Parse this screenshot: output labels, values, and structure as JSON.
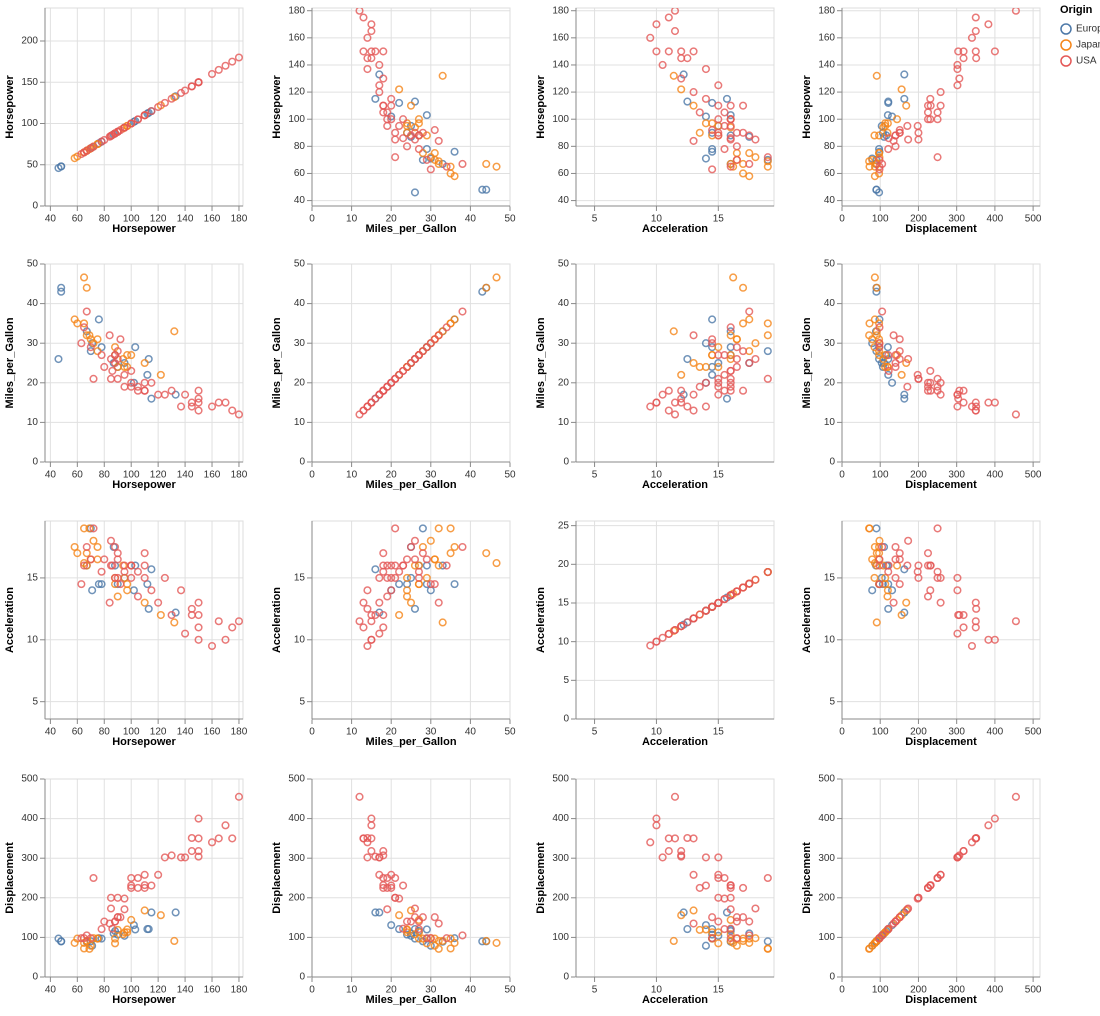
{
  "chart_data": {
    "type": "scatter-matrix",
    "fields": [
      "Horsepower",
      "Miles_per_Gallon",
      "Acceleration",
      "Displacement"
    ],
    "legend_title": "Origin",
    "legend": "top-right",
    "grid": true,
    "series": [
      {
        "name": "Europe",
        "color": "#4c78a8",
        "values": [
          [
            46,
            26,
            20.5,
            97
          ],
          [
            87,
            25,
            17.5,
            110
          ],
          [
            90,
            24,
            14.5,
            107
          ],
          [
            95,
            25,
            15,
            104
          ],
          [
            113,
            26,
            12.5,
            121
          ],
          [
            88,
            27,
            16,
            116
          ],
          [
            70,
            28,
            19,
            90
          ],
          [
            48,
            43,
            21,
            90
          ],
          [
            48,
            44,
            22,
            90
          ],
          [
            71,
            30,
            14,
            79
          ],
          [
            112,
            22,
            14.5,
            121
          ],
          [
            78,
            29,
            14.5,
            97
          ],
          [
            76,
            36,
            14.5,
            98
          ],
          [
            115,
            16,
            15.7,
            163
          ],
          [
            133,
            17,
            12.2,
            163
          ],
          [
            102,
            20,
            14,
            131
          ],
          [
            67,
            33,
            16,
            89
          ],
          [
            103,
            29,
            16,
            120
          ]
        ]
      },
      {
        "name": "Japan",
        "color": "#f58518",
        "values": [
          [
            95,
            24,
            15,
            113
          ],
          [
            88,
            27,
            14.5,
            97
          ],
          [
            97,
            27,
            14.5,
            113
          ],
          [
            65,
            35,
            19,
            72
          ],
          [
            69,
            32,
            19,
            71
          ],
          [
            60,
            35,
            17,
            97
          ],
          [
            70,
            31,
            16.5,
            79
          ],
          [
            67,
            32,
            16,
            91
          ],
          [
            75,
            28,
            17.5,
            97
          ],
          [
            90,
            24,
            13.5,
            119
          ],
          [
            94,
            26,
            16,
            108
          ],
          [
            100,
            27,
            16,
            144
          ],
          [
            122,
            22,
            12,
            156
          ],
          [
            132,
            33,
            11.4,
            91
          ],
          [
            58,
            36,
            17.5,
            86
          ],
          [
            65,
            46.6,
            16.2,
            86
          ],
          [
            67,
            44,
            17,
            91
          ],
          [
            75,
            31,
            16.5,
            97
          ],
          [
            110,
            25,
            13,
            168
          ],
          [
            97,
            24,
            14,
            120
          ],
          [
            88,
            29,
            15,
            85
          ],
          [
            72,
            30,
            18,
            98
          ]
        ]
      },
      {
        "name": "USA",
        "color": "#e45756",
        "values": [
          [
            130,
            18,
            12,
            307
          ],
          [
            165,
            15,
            11.5,
            350
          ],
          [
            150,
            18,
            11,
            318
          ],
          [
            150,
            16,
            12,
            304
          ],
          [
            140,
            17,
            10.5,
            302
          ],
          [
            170,
            15,
            10,
            383
          ],
          [
            160,
            14,
            9.5,
            340
          ],
          [
            150,
            15,
            10,
            400
          ],
          [
            175,
            13,
            11,
            350
          ],
          [
            180,
            12,
            11.5,
            455
          ],
          [
            145,
            14,
            12.5,
            351
          ],
          [
            137,
            14,
            14,
            302
          ],
          [
            150,
            13,
            13,
            350
          ],
          [
            100,
            19,
            15,
            250
          ],
          [
            105,
            18,
            15.5,
            250
          ],
          [
            110,
            18,
            16,
            232
          ],
          [
            100,
            20,
            16,
            225
          ],
          [
            90,
            21,
            15,
            200
          ],
          [
            95,
            22,
            15.5,
            198
          ],
          [
            85,
            21,
            16,
            200
          ],
          [
            88,
            25,
            17.5,
            140
          ],
          [
            86,
            23,
            16,
            122
          ],
          [
            90,
            26,
            16.5,
            151
          ],
          [
            72,
            21,
            19,
            250
          ],
          [
            110,
            20,
            15,
            258
          ],
          [
            90,
            28,
            17,
            151
          ],
          [
            88,
            27,
            15,
            140
          ],
          [
            105,
            19,
            13.5,
            225
          ],
          [
            84,
            32,
            13,
            135
          ],
          [
            63,
            30,
            14.5,
            98
          ],
          [
            70,
            29,
            16.5,
            98
          ],
          [
            80,
            24,
            16.5,
            140
          ],
          [
            78,
            27,
            15.5,
            121
          ],
          [
            100,
            23,
            16,
            231
          ],
          [
            115,
            20,
            14,
            231
          ],
          [
            120,
            17,
            13,
            258
          ],
          [
            110,
            18,
            17,
            225
          ],
          [
            125,
            17,
            15,
            302
          ],
          [
            95,
            19,
            16,
            171
          ],
          [
            92,
            31,
            14.5,
            151
          ],
          [
            85,
            26,
            18,
            173
          ],
          [
            145,
            15,
            12,
            318
          ],
          [
            67,
            38,
            17.5,
            105
          ],
          [
            65,
            34,
            16,
            98
          ]
        ]
      }
    ],
    "panels": [
      {
        "x": 0,
        "y": 0,
        "xlim": [
          36,
          183
        ],
        "ylim": [
          0,
          240
        ],
        "xticks": [
          40,
          60,
          80,
          100,
          120,
          140,
          160,
          180
        ],
        "yticks": [
          0,
          50,
          100,
          150,
          200
        ]
      },
      {
        "x": 1,
        "y": 0,
        "xlim": [
          0,
          50
        ],
        "ylim": [
          36,
          182
        ],
        "xticks": [
          0,
          10,
          20,
          30,
          40,
          50
        ],
        "yticks": [
          40,
          60,
          80,
          100,
          120,
          140,
          160,
          180
        ]
      },
      {
        "x": 2,
        "y": 0,
        "xlim": [
          3.5,
          19.5
        ],
        "ylim": [
          36,
          182
        ],
        "xticks": [
          5,
          10,
          15
        ],
        "yticks": [
          40,
          60,
          80,
          100,
          120,
          140,
          160,
          180
        ]
      },
      {
        "x": 3,
        "y": 0,
        "xlim": [
          0,
          518
        ],
        "ylim": [
          36,
          182
        ],
        "xticks": [
          0,
          100,
          200,
          300,
          400,
          500
        ],
        "yticks": [
          40,
          60,
          80,
          100,
          120,
          140,
          160,
          180
        ]
      },
      {
        "x": 0,
        "y": 1,
        "xlim": [
          36,
          183
        ],
        "ylim": [
          0,
          50
        ],
        "xticks": [
          40,
          60,
          80,
          100,
          120,
          140,
          160,
          180
        ],
        "yticks": [
          0,
          10,
          20,
          30,
          40,
          50
        ]
      },
      {
        "x": 1,
        "y": 1,
        "xlim": [
          0,
          50
        ],
        "ylim": [
          0,
          50
        ],
        "xticks": [
          0,
          10,
          20,
          30,
          40,
          50
        ],
        "yticks": [
          0,
          10,
          20,
          30,
          40,
          50
        ]
      },
      {
        "x": 2,
        "y": 1,
        "xlim": [
          3.5,
          19.5
        ],
        "ylim": [
          0,
          50
        ],
        "xticks": [
          5,
          10,
          15
        ],
        "yticks": [
          0,
          10,
          20,
          30,
          40,
          50
        ]
      },
      {
        "x": 3,
        "y": 1,
        "xlim": [
          0,
          518
        ],
        "ylim": [
          0,
          50
        ],
        "xticks": [
          0,
          100,
          200,
          300,
          400,
          500
        ],
        "yticks": [
          0,
          10,
          20,
          30,
          40,
          50
        ]
      },
      {
        "x": 0,
        "y": 2,
        "xlim": [
          36,
          183
        ],
        "ylim": [
          3.6,
          19.6
        ],
        "xticks": [
          40,
          60,
          80,
          100,
          120,
          140,
          160,
          180
        ],
        "yticks": [
          5,
          10,
          15
        ]
      },
      {
        "x": 1,
        "y": 2,
        "xlim": [
          0,
          50
        ],
        "ylim": [
          3.6,
          19.6
        ],
        "xticks": [
          0,
          10,
          20,
          30,
          40,
          50
        ],
        "yticks": [
          5,
          10,
          15
        ]
      },
      {
        "x": 2,
        "y": 2,
        "xlim": [
          3.5,
          19.5
        ],
        "ylim": [
          0,
          25.6
        ],
        "xticks": [
          5,
          10,
          15
        ],
        "yticks": [
          0,
          5,
          10,
          15,
          20,
          25
        ]
      },
      {
        "x": 3,
        "y": 2,
        "xlim": [
          0,
          518
        ],
        "ylim": [
          3.6,
          19.6
        ],
        "xticks": [
          0,
          100,
          200,
          300,
          400,
          500
        ],
        "yticks": [
          5,
          10,
          15
        ]
      },
      {
        "x": 0,
        "y": 3,
        "xlim": [
          36,
          183
        ],
        "ylim": [
          0,
          500
        ],
        "xticks": [
          40,
          60,
          80,
          100,
          120,
          140,
          160,
          180
        ],
        "yticks": [
          0,
          100,
          200,
          300,
          400,
          500
        ]
      },
      {
        "x": 1,
        "y": 3,
        "xlim": [
          0,
          50
        ],
        "ylim": [
          0,
          500
        ],
        "xticks": [
          0,
          10,
          20,
          30,
          40,
          50
        ],
        "yticks": [
          0,
          100,
          200,
          300,
          400,
          500
        ]
      },
      {
        "x": 2,
        "y": 3,
        "xlim": [
          3.5,
          19.5
        ],
        "ylim": [
          0,
          500
        ],
        "xticks": [
          5,
          10,
          15
        ],
        "yticks": [
          0,
          100,
          200,
          300,
          400,
          500
        ]
      },
      {
        "x": 3,
        "y": 3,
        "xlim": [
          0,
          518
        ],
        "ylim": [
          0,
          500
        ],
        "xticks": [
          0,
          100,
          200,
          300,
          400,
          500
        ],
        "yticks": [
          0,
          100,
          200,
          300,
          400,
          500
        ]
      }
    ]
  }
}
